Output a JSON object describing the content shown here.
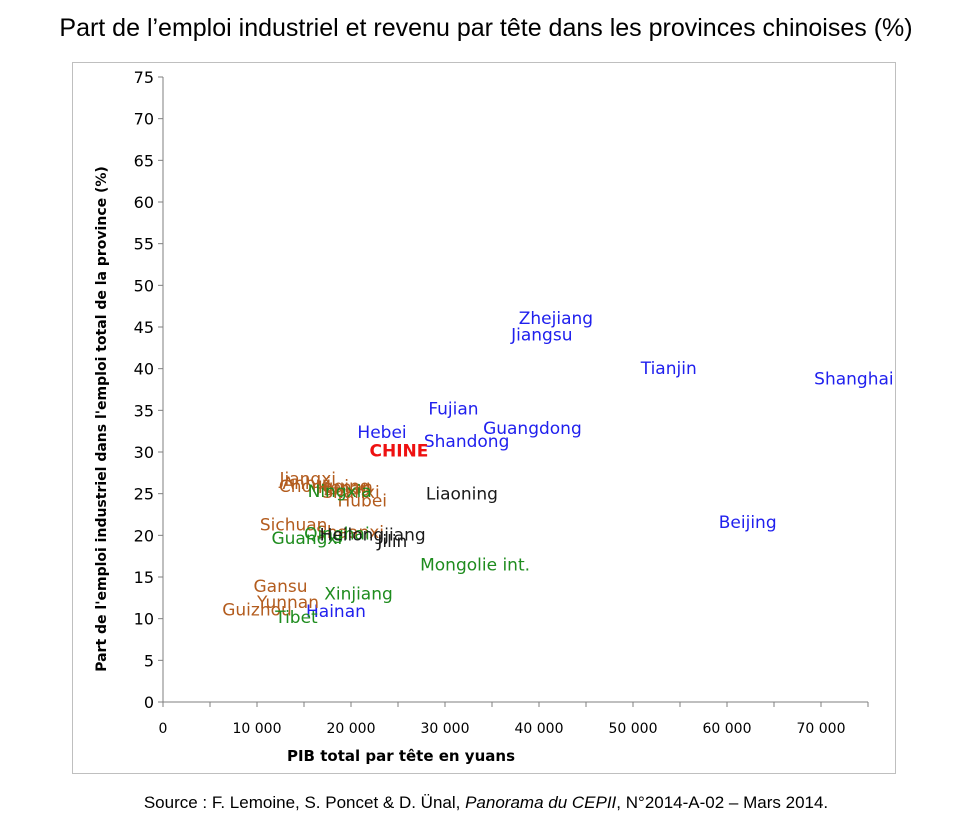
{
  "title": "Part de l’emploi industriel et revenu par tête dans les provinces chinoises (%)",
  "source": {
    "prefix": "Source : F. Lemoine, S. Poncet & D. Ünal, ",
    "publication": "Panorama du CEPII",
    "suffix": ", N°2014-A-02 – Mars 2014."
  },
  "chart_data": {
    "type": "scatter",
    "xlabel": "PIB total par tête en yuans",
    "ylabel": "Part de l'emploi industriel dans l'emploi total de la province (%)",
    "xlim": [
      0,
      75000
    ],
    "ylim": [
      0,
      75
    ],
    "xticks": [
      0,
      10000,
      20000,
      30000,
      40000,
      50000,
      60000,
      70000
    ],
    "xtick_labels": [
      "0",
      "10 000",
      "20 000",
      "30 000",
      "40 000",
      "50 000",
      "60 000",
      "70 000"
    ],
    "yticks": [
      0,
      5,
      10,
      15,
      20,
      25,
      30,
      35,
      40,
      45,
      50,
      55,
      60,
      65,
      70,
      75
    ],
    "ytick_labels": [
      "0",
      "5",
      "10",
      "15",
      "20",
      "25",
      "30",
      "35",
      "40",
      "45",
      "50",
      "55",
      "60",
      "65",
      "70",
      "75"
    ],
    "grid": false,
    "colors": {
      "east": "#2020ee",
      "center": "#b35c1e",
      "west": "#1e8c1e",
      "northeast": "#1a1a1a",
      "china": "#ee1111"
    },
    "points": [
      {
        "label": "Zhejiang",
        "x": 41800,
        "y": 46.1,
        "group": "east"
      },
      {
        "label": "Jiangsu",
        "x": 40300,
        "y": 44.1,
        "group": "east"
      },
      {
        "label": "Tianjin",
        "x": 53800,
        "y": 40.1,
        "group": "east"
      },
      {
        "label": "Shanghai",
        "x": 73500,
        "y": 38.8,
        "group": "east"
      },
      {
        "label": "Fujian",
        "x": 30900,
        "y": 35.2,
        "group": "east"
      },
      {
        "label": "Guangdong",
        "x": 39300,
        "y": 32.9,
        "group": "east"
      },
      {
        "label": "Hebei",
        "x": 23300,
        "y": 32.4,
        "group": "east"
      },
      {
        "label": "Shandong",
        "x": 32300,
        "y": 31.3,
        "group": "east"
      },
      {
        "label": "CHINE",
        "x": 25100,
        "y": 30.2,
        "group": "china"
      },
      {
        "label": "Beijing",
        "x": 62200,
        "y": 21.6,
        "group": "east"
      },
      {
        "label": "Hainan",
        "x": 18400,
        "y": 10.9,
        "group": "east"
      },
      {
        "label": "Jiangxi",
        "x": 15400,
        "y": 26.8,
        "group": "center"
      },
      {
        "label": "Anhui",
        "x": 15300,
        "y": 26.3,
        "group": "center"
      },
      {
        "label": "Chongqing",
        "x": 17200,
        "y": 25.9,
        "group": "center"
      },
      {
        "label": "Henan",
        "x": 19400,
        "y": 25.8,
        "group": "center"
      },
      {
        "label": "Shanxi",
        "x": 20000,
        "y": 25.2,
        "group": "center"
      },
      {
        "label": "Hunan",
        "x": 19200,
        "y": 25.6,
        "group": "center"
      },
      {
        "label": "Hubei",
        "x": 21200,
        "y": 24.2,
        "group": "center"
      },
      {
        "label": "Sichuan",
        "x": 13900,
        "y": 21.3,
        "group": "center"
      },
      {
        "label": "Shaanxi",
        "x": 19900,
        "y": 20.4,
        "group": "center"
      },
      {
        "label": "Gansu",
        "x": 12500,
        "y": 13.9,
        "group": "center"
      },
      {
        "label": "Yunnan",
        "x": 13300,
        "y": 12.0,
        "group": "center"
      },
      {
        "label": "Guizhou",
        "x": 10000,
        "y": 11.1,
        "group": "center"
      },
      {
        "label": "Ningxia",
        "x": 18800,
        "y": 25.3,
        "group": "west"
      },
      {
        "label": "Guangxi",
        "x": 15300,
        "y": 19.7,
        "group": "west"
      },
      {
        "label": "Qinghai",
        "x": 18500,
        "y": 20.2,
        "group": "west"
      },
      {
        "label": "Xinjiang",
        "x": 20800,
        "y": 13.0,
        "group": "west"
      },
      {
        "label": "Tibet",
        "x": 14200,
        "y": 10.2,
        "group": "west"
      },
      {
        "label": "Mongolie int.",
        "x": 33200,
        "y": 16.5,
        "group": "west"
      },
      {
        "label": "Liaoning",
        "x": 31800,
        "y": 25.0,
        "group": "northeast"
      },
      {
        "label": "Heilongjiang",
        "x": 22300,
        "y": 20.1,
        "group": "northeast"
      },
      {
        "label": "Jilin",
        "x": 24400,
        "y": 19.3,
        "group": "northeast"
      }
    ]
  }
}
